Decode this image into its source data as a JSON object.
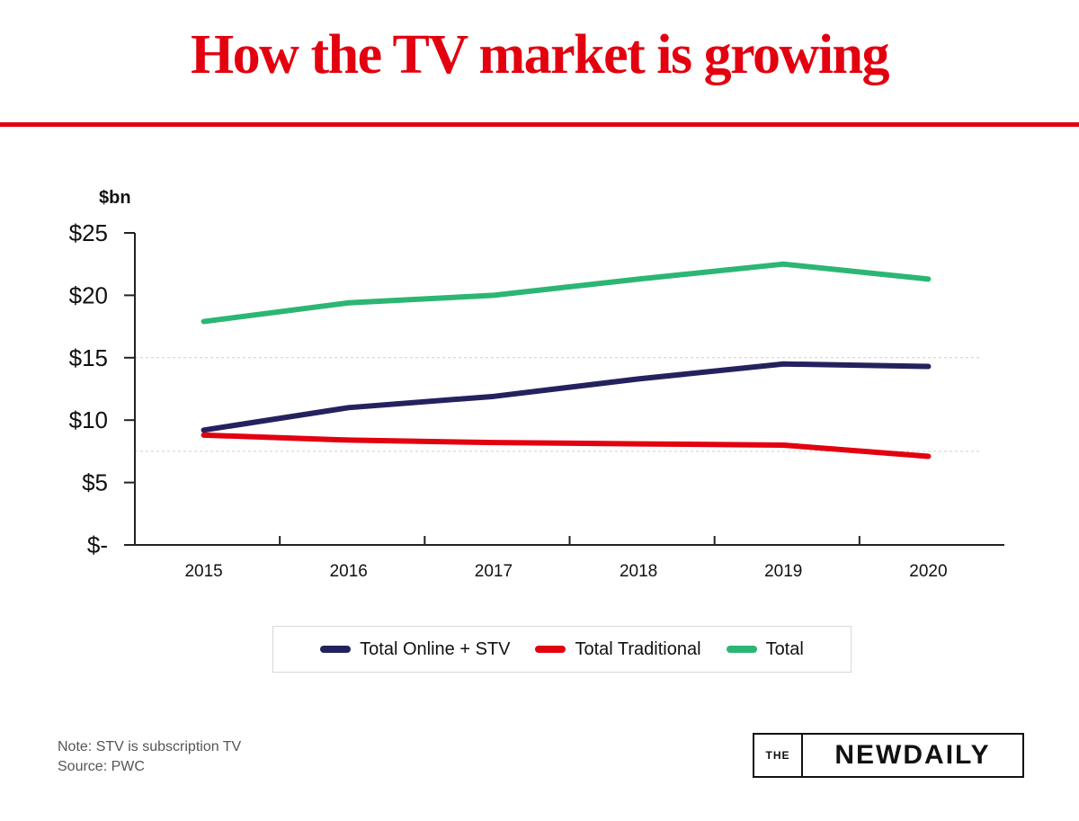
{
  "header": {
    "title": "How the TV market is growing"
  },
  "chart_data": {
    "type": "line",
    "title": "How the TV market is growing",
    "ylabel": "$bn",
    "xlabel": "",
    "x": [
      "2015",
      "2016",
      "2017",
      "2018",
      "2019",
      "2020"
    ],
    "ylim": [
      0,
      25
    ],
    "yticks": [
      0,
      5,
      10,
      15,
      20,
      25
    ],
    "ytick_labels": [
      "$-",
      "$5",
      "$10",
      "$15",
      "$20",
      "$25"
    ],
    "grid": "dotted horizontal (faint)",
    "legend_position": "bottom",
    "series": [
      {
        "name": "Total Online + STV",
        "color": "#24225e",
        "values": [
          9.2,
          11.0,
          11.9,
          13.3,
          14.5,
          14.3
        ]
      },
      {
        "name": "Total Traditional",
        "color": "#e3000f",
        "values": [
          8.8,
          8.4,
          8.2,
          8.1,
          8.0,
          7.1
        ]
      },
      {
        "name": "Total",
        "color": "#2cb673",
        "values": [
          17.9,
          19.4,
          20.0,
          21.3,
          22.5,
          21.3
        ]
      }
    ]
  },
  "footer": {
    "note": "Note: STV is subscription TV",
    "source": "Source: PWC",
    "logo_the": "THE",
    "logo_main": "NEWDAILY"
  }
}
